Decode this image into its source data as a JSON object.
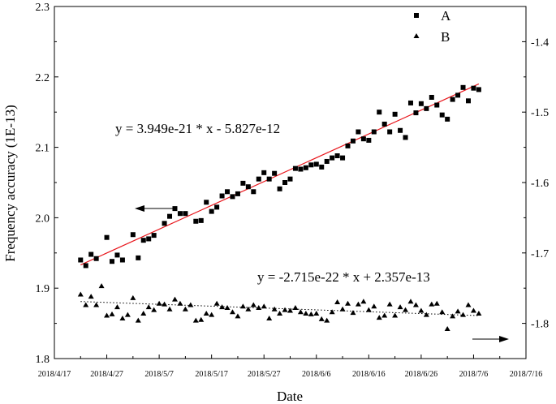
{
  "chart_data": {
    "type": "scatter",
    "xlabel": "Date",
    "ylabel": "Frequency accuracy (1E-13)",
    "x_date_range": [
      "2018-04-17",
      "2018-07-16"
    ],
    "xticks": [
      "2018/4/17",
      "2018/4/27",
      "2018/5/7",
      "2018/5/17",
      "2018/5/27",
      "2018/6/6",
      "2018/6/16",
      "2018/6/26",
      "2018/7/6",
      "2018/7/16"
    ],
    "ylim_left": [
      1.8,
      2.3
    ],
    "yticks_left": [
      "1.8",
      "1.9",
      "2.0",
      "2.1",
      "2.2",
      "2.3"
    ],
    "ylim_right": [
      -1.85,
      -1.35
    ],
    "yticks_right": [
      "-1.8",
      "-1.7",
      "-1.6",
      "-1.5",
      "-1.4"
    ],
    "legend": {
      "placement": "top-right",
      "entries": [
        "A",
        "B"
      ]
    },
    "series": [
      {
        "name": "A",
        "marker": "square",
        "axis": "left",
        "fit_equation": "y = 3.949e-21 * x - 5.827e-12",
        "fit_line": {
          "color": "#e8151b",
          "x": [
            "2018-04-22",
            "2018-07-07"
          ],
          "y": [
            1.933,
            2.19
          ]
        },
        "x": [
          "2018-04-22",
          "2018-04-23",
          "2018-04-24",
          "2018-04-25",
          "2018-04-27",
          "2018-04-28",
          "2018-04-29",
          "2018-04-30",
          "2018-05-02",
          "2018-05-03",
          "2018-05-04",
          "2018-05-05",
          "2018-05-06",
          "2018-05-08",
          "2018-05-09",
          "2018-05-10",
          "2018-05-11",
          "2018-05-12",
          "2018-05-14",
          "2018-05-15",
          "2018-05-16",
          "2018-05-17",
          "2018-05-18",
          "2018-05-19",
          "2018-05-20",
          "2018-05-21",
          "2018-05-22",
          "2018-05-23",
          "2018-05-24",
          "2018-05-25",
          "2018-05-26",
          "2018-05-27",
          "2018-05-28",
          "2018-05-29",
          "2018-05-30",
          "2018-05-31",
          "2018-06-01",
          "2018-06-02",
          "2018-06-03",
          "2018-06-04",
          "2018-06-05",
          "2018-06-06",
          "2018-06-07",
          "2018-06-08",
          "2018-06-09",
          "2018-06-10",
          "2018-06-11",
          "2018-06-12",
          "2018-06-13",
          "2018-06-14",
          "2018-06-15",
          "2018-06-16",
          "2018-06-17",
          "2018-06-18",
          "2018-06-19",
          "2018-06-20",
          "2018-06-21",
          "2018-06-22",
          "2018-06-23",
          "2018-06-24",
          "2018-06-25",
          "2018-06-26",
          "2018-06-27",
          "2018-06-28",
          "2018-06-29",
          "2018-06-30",
          "2018-07-01",
          "2018-07-02",
          "2018-07-03",
          "2018-07-04",
          "2018-07-05",
          "2018-07-06",
          "2018-07-07"
        ],
        "y": [
          1.94,
          1.932,
          1.948,
          1.942,
          1.972,
          1.938,
          1.947,
          1.94,
          1.976,
          1.943,
          1.968,
          1.97,
          1.975,
          1.992,
          2.002,
          2.013,
          2.006,
          2.006,
          1.995,
          1.996,
          2.022,
          2.009,
          2.015,
          2.031,
          2.037,
          2.03,
          2.034,
          2.049,
          2.044,
          2.037,
          2.055,
          2.064,
          2.055,
          2.063,
          2.041,
          2.05,
          2.055,
          2.07,
          2.069,
          2.071,
          2.075,
          2.076,
          2.072,
          2.08,
          2.085,
          2.088,
          2.085,
          2.102,
          2.109,
          2.122,
          2.112,
          2.11,
          2.122,
          2.15,
          2.133,
          2.122,
          2.147,
          2.124,
          2.114,
          2.163,
          2.149,
          2.162,
          2.155,
          2.171,
          2.16,
          2.146,
          2.14,
          2.168,
          2.174,
          2.185,
          2.166,
          2.184,
          2.182
        ]
      },
      {
        "name": "B",
        "marker": "triangle",
        "axis": "right",
        "fit_equation": "y = -2.715e-22 * x + 2.357e-13",
        "fit_line": {
          "style": "dotted",
          "x": [
            "2018-04-22",
            "2018-07-07"
          ],
          "y": [
            -1.769,
            -1.789
          ]
        },
        "x": [
          "2018-04-22",
          "2018-04-23",
          "2018-04-24",
          "2018-04-25",
          "2018-04-26",
          "2018-04-27",
          "2018-04-28",
          "2018-04-29",
          "2018-04-30",
          "2018-05-01",
          "2018-05-02",
          "2018-05-03",
          "2018-05-04",
          "2018-05-05",
          "2018-05-06",
          "2018-05-07",
          "2018-05-08",
          "2018-05-09",
          "2018-05-10",
          "2018-05-11",
          "2018-05-12",
          "2018-05-13",
          "2018-05-14",
          "2018-05-15",
          "2018-05-16",
          "2018-05-17",
          "2018-05-18",
          "2018-05-19",
          "2018-05-20",
          "2018-05-21",
          "2018-05-22",
          "2018-05-23",
          "2018-05-24",
          "2018-05-25",
          "2018-05-26",
          "2018-05-27",
          "2018-05-28",
          "2018-05-29",
          "2018-05-30",
          "2018-05-31",
          "2018-06-01",
          "2018-06-02",
          "2018-06-03",
          "2018-06-04",
          "2018-06-05",
          "2018-06-06",
          "2018-06-07",
          "2018-06-08",
          "2018-06-09",
          "2018-06-10",
          "2018-06-11",
          "2018-06-12",
          "2018-06-13",
          "2018-06-14",
          "2018-06-15",
          "2018-06-16",
          "2018-06-17",
          "2018-06-18",
          "2018-06-19",
          "2018-06-20",
          "2018-06-21",
          "2018-06-22",
          "2018-06-23",
          "2018-06-24",
          "2018-06-25",
          "2018-06-26",
          "2018-06-27",
          "2018-06-28",
          "2018-06-29",
          "2018-06-30",
          "2018-07-01",
          "2018-07-02",
          "2018-07-03",
          "2018-07-04",
          "2018-07-05",
          "2018-07-06",
          "2018-07-07"
        ],
        "y": [
          -1.759,
          -1.774,
          -1.762,
          -1.774,
          -1.747,
          -1.789,
          -1.787,
          -1.777,
          -1.793,
          -1.788,
          -1.764,
          -1.796,
          -1.786,
          -1.777,
          -1.781,
          -1.772,
          -1.773,
          -1.78,
          -1.766,
          -1.772,
          -1.78,
          -1.774,
          -1.796,
          -1.795,
          -1.786,
          -1.788,
          -1.772,
          -1.777,
          -1.778,
          -1.784,
          -1.79,
          -1.776,
          -1.78,
          -1.774,
          -1.778,
          -1.776,
          -1.793,
          -1.78,
          -1.786,
          -1.781,
          -1.782,
          -1.778,
          -1.784,
          -1.786,
          -1.787,
          -1.786,
          -1.794,
          -1.796,
          -1.784,
          -1.77,
          -1.78,
          -1.772,
          -1.785,
          -1.773,
          -1.769,
          -1.781,
          -1.776,
          -1.792,
          -1.789,
          -1.773,
          -1.789,
          -1.777,
          -1.781,
          -1.769,
          -1.774,
          -1.782,
          -1.788,
          -1.773,
          -1.772,
          -1.784,
          -1.808,
          -1.79,
          -1.783,
          -1.788,
          -1.774,
          -1.782,
          -1.786
        ]
      }
    ]
  }
}
